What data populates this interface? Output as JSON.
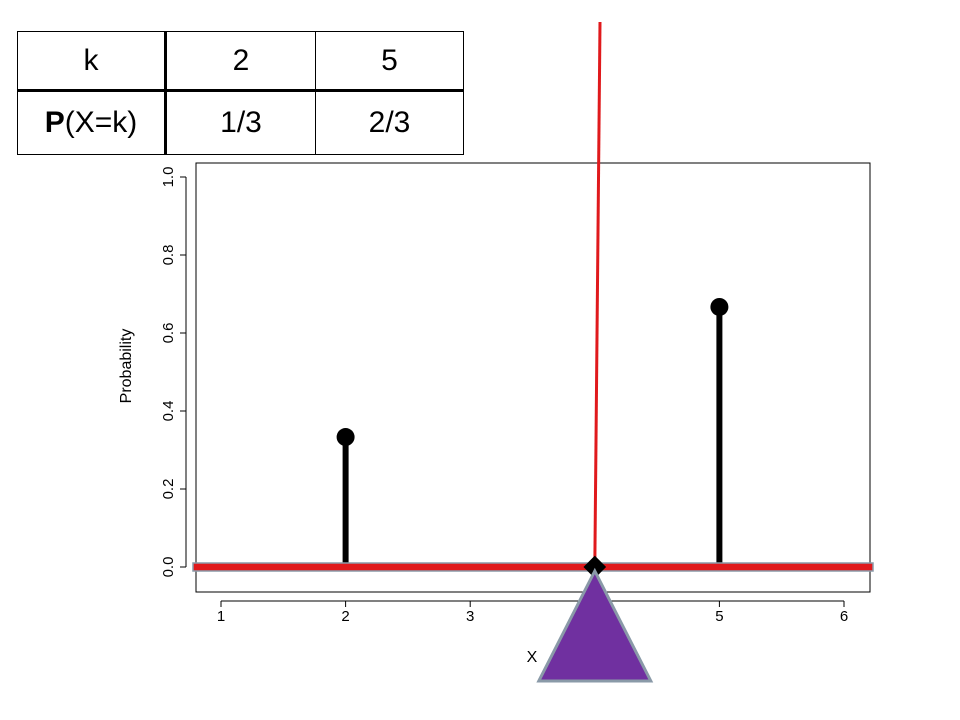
{
  "table": {
    "header_label": "k",
    "values": [
      "2",
      "5"
    ],
    "row2_label_bold": "P",
    "row2_label_rest": "(X=k)",
    "probabilities": [
      "1/3",
      "2/3"
    ]
  },
  "chart_data": {
    "type": "stem",
    "xlabel": "X",
    "ylabel": "Probability",
    "xlim": [
      0.8,
      6.2
    ],
    "ylim": [
      0.0,
      1.0
    ],
    "x_ticks": [
      "1",
      "2",
      "3",
      "4",
      "5",
      "6"
    ],
    "x_tick_values": [
      1,
      2,
      3,
      4,
      5,
      6
    ],
    "y_ticks": [
      "0.0",
      "0.2",
      "0.4",
      "0.6",
      "0.8",
      "1.0"
    ],
    "y_tick_values": [
      0.0,
      0.2,
      0.4,
      0.6,
      0.8,
      1.0
    ],
    "points": [
      {
        "x": 2,
        "y": 0.3333
      },
      {
        "x": 5,
        "y": 0.6667
      }
    ],
    "balance_point": {
      "x": 4,
      "y": 0.0
    },
    "colors": {
      "stems": "#000000",
      "balance_beam": "#e0191c",
      "beam_outline": "#8a9aa8",
      "vertical_line": "#e0191c",
      "fulcrum": "#7030a0",
      "fulcrum_outline": "#8a9aa8"
    }
  }
}
